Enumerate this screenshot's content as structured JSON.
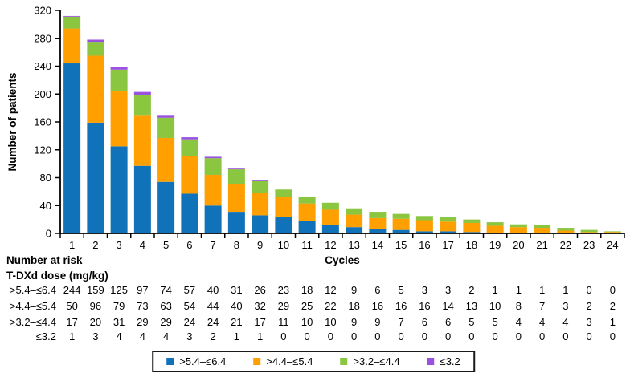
{
  "chart_data": {
    "type": "bar",
    "stacked": true,
    "title": "",
    "xlabel": "Cycles",
    "ylabel": "Number of patients",
    "ylim": [
      0,
      320
    ],
    "yticks": [
      0,
      40,
      80,
      120,
      160,
      200,
      240,
      280,
      320
    ],
    "grid": false,
    "legend_position": "bottom",
    "categories": [
      "1",
      "2",
      "3",
      "4",
      "5",
      "6",
      "7",
      "8",
      "9",
      "10",
      "11",
      "12",
      "13",
      "14",
      "15",
      "16",
      "17",
      "18",
      "19",
      "20",
      "21",
      "22",
      "23",
      "24"
    ],
    "series": [
      {
        "name": ">5.4–≤6.4",
        "color": "#1073B9",
        "values": [
          244,
          159,
          125,
          97,
          74,
          57,
          40,
          31,
          26,
          23,
          18,
          12,
          9,
          6,
          5,
          3,
          3,
          2,
          1,
          1,
          1,
          1,
          0,
          0
        ]
      },
      {
        "name": ">4.4–≤5.4",
        "color": "#FF9F00",
        "values": [
          50,
          96,
          79,
          73,
          63,
          54,
          44,
          40,
          32,
          29,
          25,
          22,
          18,
          16,
          16,
          16,
          14,
          13,
          10,
          8,
          7,
          3,
          2,
          2
        ]
      },
      {
        "name": ">3.2–≤4.4",
        "color": "#8AC640",
        "values": [
          17,
          20,
          31,
          29,
          29,
          24,
          24,
          21,
          17,
          11,
          10,
          10,
          9,
          9,
          7,
          6,
          6,
          5,
          5,
          4,
          4,
          4,
          3,
          1
        ]
      },
      {
        "name": "≤3.2",
        "color": "#9B51E0",
        "values": [
          1,
          3,
          4,
          4,
          4,
          3,
          2,
          1,
          1,
          0,
          0,
          0,
          0,
          0,
          0,
          0,
          0,
          0,
          0,
          0,
          0,
          0,
          0,
          0
        ]
      }
    ]
  },
  "number_at_risk": {
    "title": "Number at risk",
    "subtitle": "T-DXd dose (mg/kg)",
    "rows": [
      {
        "label": ">5.4–≤6.4",
        "values": [
          244,
          159,
          125,
          97,
          74,
          57,
          40,
          31,
          26,
          23,
          18,
          12,
          9,
          6,
          5,
          3,
          3,
          2,
          1,
          1,
          1,
          1,
          0,
          0
        ]
      },
      {
        "label": ">4.4–≤5.4",
        "values": [
          50,
          96,
          79,
          73,
          63,
          54,
          44,
          40,
          32,
          29,
          25,
          22,
          18,
          16,
          16,
          16,
          14,
          13,
          10,
          8,
          7,
          3,
          2,
          2
        ]
      },
      {
        "label": ">3.2–≤4.4",
        "values": [
          17,
          20,
          31,
          29,
          29,
          24,
          24,
          21,
          17,
          11,
          10,
          10,
          9,
          9,
          7,
          6,
          6,
          5,
          5,
          4,
          4,
          4,
          3,
          1
        ]
      },
      {
        "label": "≤3.2",
        "values": [
          1,
          3,
          4,
          4,
          4,
          3,
          2,
          1,
          1,
          0,
          0,
          0,
          0,
          0,
          0,
          0,
          0,
          0,
          0,
          0,
          0,
          0,
          0,
          0
        ]
      }
    ]
  },
  "colors": {
    "axis": "#000000",
    "text": "#000000",
    "legend_border": "#1a1a1a",
    "background": "#ffffff"
  }
}
